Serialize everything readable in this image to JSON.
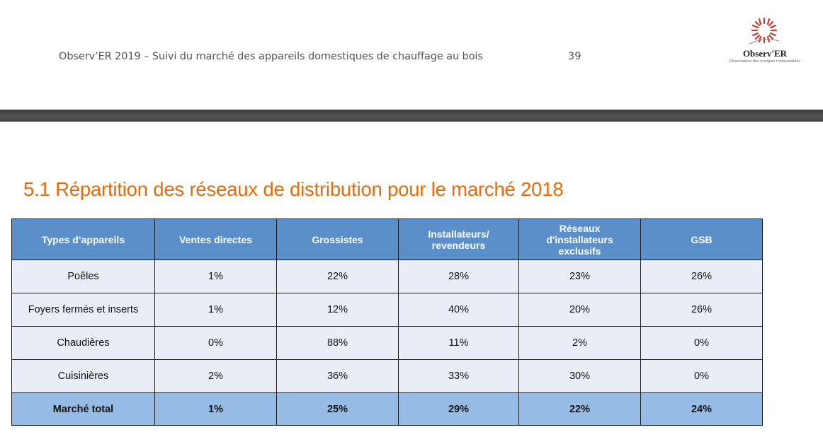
{
  "header": {
    "text": "Observ’ER  2019 – Suivi du marché des appareils domestiques de chauffage au bois",
    "page_number": "39"
  },
  "logo": {
    "brand": "Observ'ER",
    "subtitle": "Observatoire des énergies renouvelables",
    "icon": "sun-logo-icon",
    "color": "#C0392B"
  },
  "section": {
    "title": "5.1 Répartition des réseaux de distribution pour le marché 2018",
    "title_color": "#E46C0A"
  },
  "table": {
    "header_color": "#5B8FC9",
    "total_color": "#96BCE6",
    "row_color": "#E9EEF6",
    "headers": [
      "Types d’appareils",
      "Ventes directes",
      "Grossistes",
      "Installateurs/\nrevendeurs",
      "Réseaux\nd'installateurs\nexclusifs",
      "GSB"
    ],
    "rows": [
      [
        "Poêles",
        "1%",
        "22%",
        "28%",
        "23%",
        "26%"
      ],
      [
        "Foyers fermés et inserts",
        "1%",
        "12%",
        "40%",
        "20%",
        "26%"
      ],
      [
        "Chaudières",
        "0%",
        "88%",
        "11%",
        "2%",
        "0%"
      ],
      [
        "Cuisinières",
        "2%",
        "36%",
        "33%",
        "30%",
        "0%"
      ]
    ],
    "total": [
      "Marché total",
      "1%",
      "25%",
      "29%",
      "22%",
      "24%"
    ]
  }
}
